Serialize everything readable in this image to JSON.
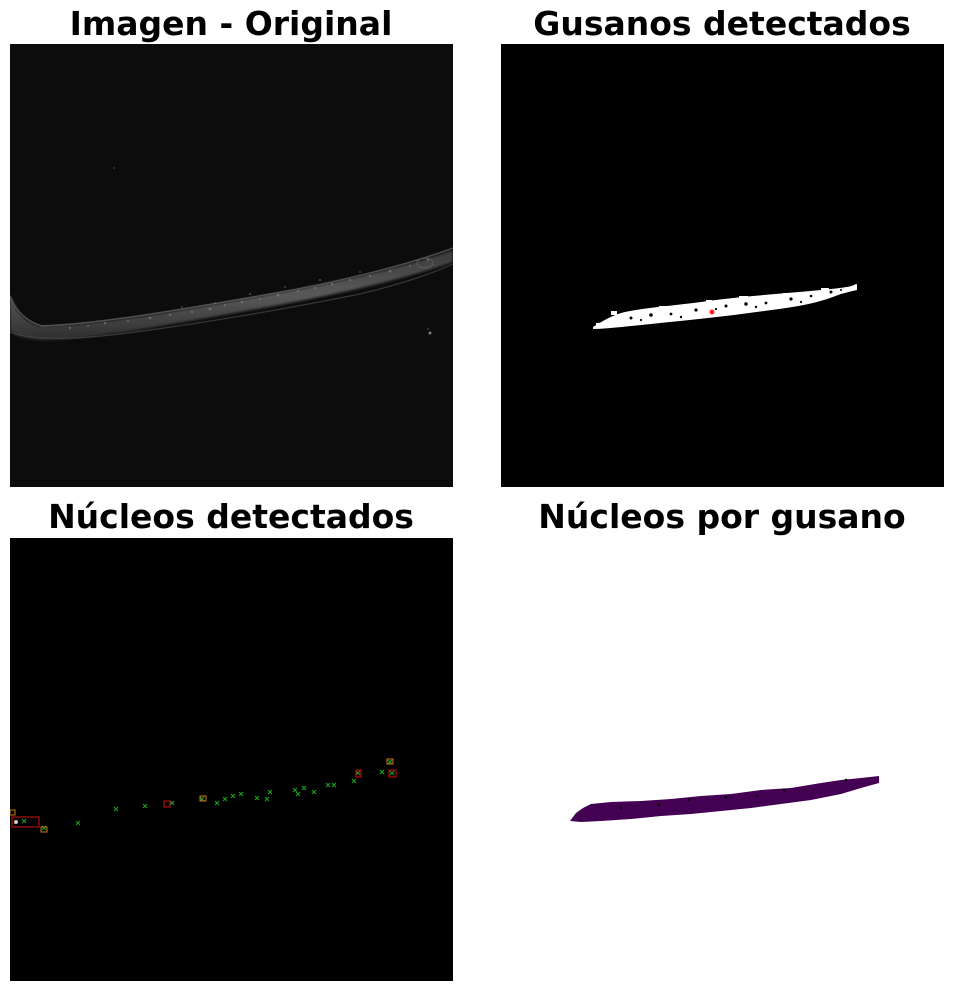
{
  "panels": [
    {
      "title": "Imagen - Original"
    },
    {
      "title": "Gusanos detectados"
    },
    {
      "title": "Núcleos detectados"
    },
    {
      "title": "Núcleos por gusano"
    }
  ],
  "colors": {
    "background_original": "#0c0c0c",
    "background_black": "#000000",
    "mask_white": "#ffffff",
    "centroid_red": "#ff2020",
    "nucleus_marker_green": "#1f9a1f",
    "nucleus_box_red": "#d01010",
    "nucleus_box_orange": "#c87a1a",
    "worm_label_purple": "#440154",
    "label_background": "#ffffff"
  }
}
